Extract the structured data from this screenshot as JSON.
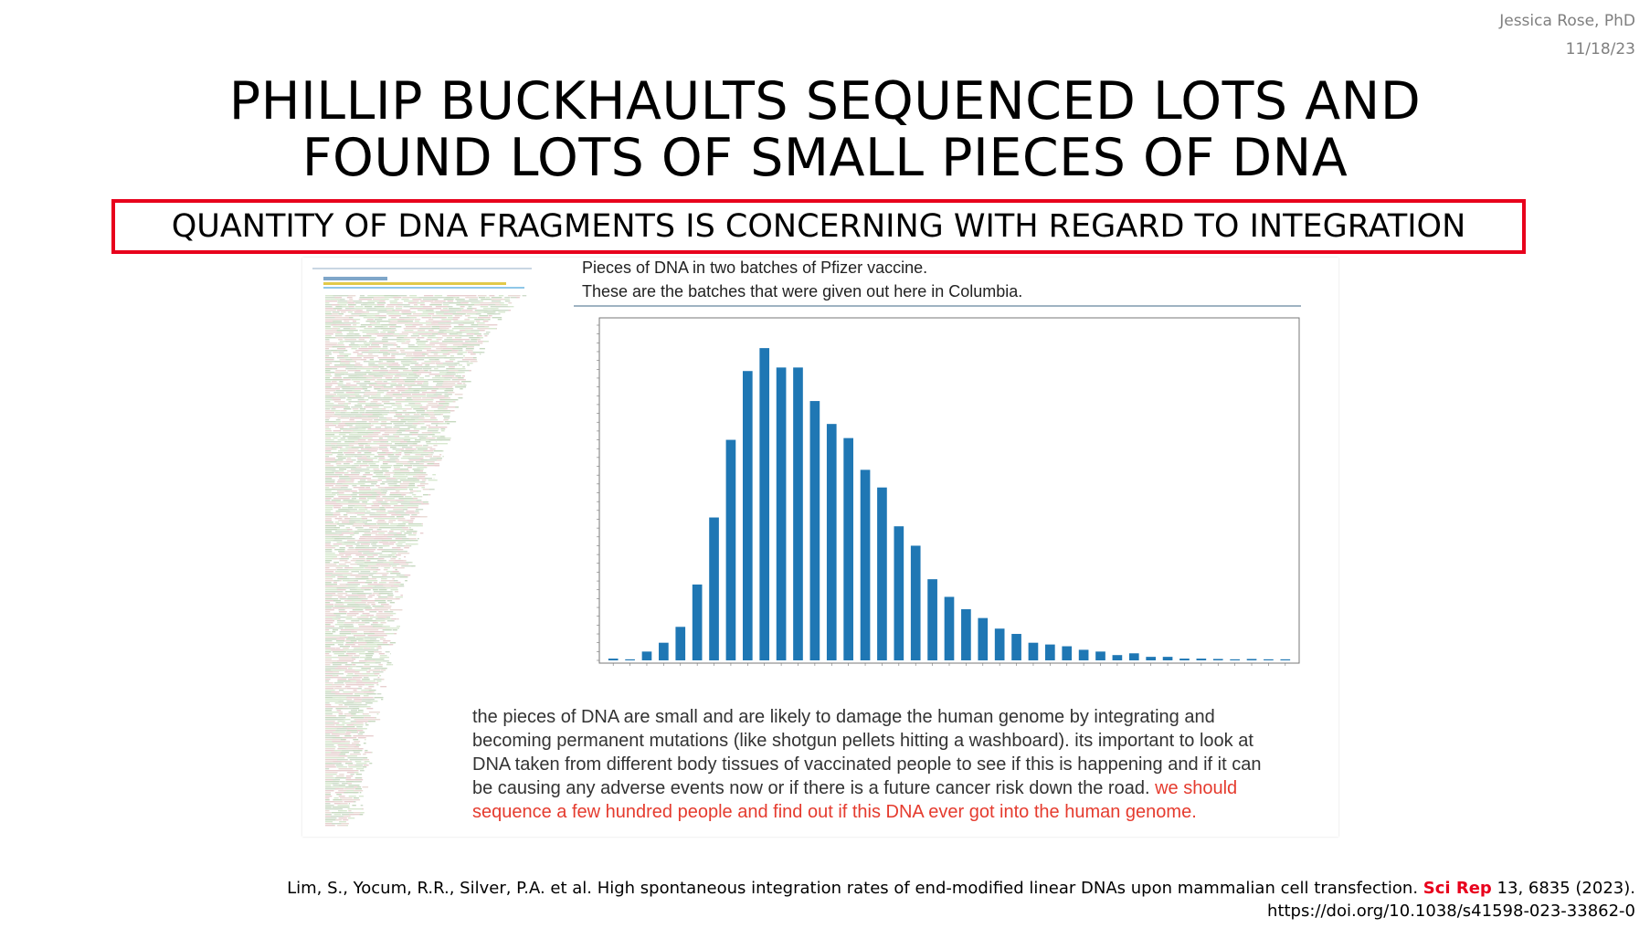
{
  "author": {
    "name": "Jessica Rose, PhD",
    "date": "11/18/23"
  },
  "title": {
    "line1": "PHILLIP BUCKHAULTS SEQUENCED LOTS AND",
    "line2": "FOUND LOTS OF SMALL PIECES OF DNA"
  },
  "banner": "QUANTITY OF DNA FRAGMENTS IS CONCERNING WITH REGARD TO INTEGRATION",
  "caption": {
    "line1": "Pieces of DNA in two batches of Pfizer vaccine.",
    "line2": "These are the batches that were given out here in Columbia."
  },
  "body": {
    "line1": "the pieces of DNA are small and are likely to damage the human genome by integrating and",
    "line2": "becoming permanent mutations (like shotgun pellets hitting a washboard).  its important to look at",
    "line3": "DNA taken from different body tissues of vaccinated people to see if this is happening and if it can",
    "line4_plain": "be causing any adverse events now or if there is a future cancer risk down the road. ",
    "line4_red": "we should",
    "line5_red": "sequence a few hundred people and find out if this DNA ever got into the human genome."
  },
  "reference": {
    "line1_pre": "Lim, S., Yocum, R.R., Silver, P.A. et al. High spontaneous integration rates of end-modified linear DNAs upon mammalian cell transfection. ",
    "line1_journal": "Sci Rep",
    "line1_post": " 13, 6835 (2023).",
    "line2": "https://doi.org/10.1038/s41598-023-33862-0"
  },
  "chart_data": {
    "type": "bar",
    "color": "#1f77b4",
    "ylim": [
      0,
      9.5
    ],
    "values": [
      0.05,
      0.03,
      0.25,
      0.5,
      0.95,
      2.15,
      4.05,
      6.25,
      8.2,
      8.85,
      8.3,
      8.3,
      7.35,
      6.7,
      6.3,
      5.4,
      4.9,
      3.8,
      3.25,
      2.3,
      1.8,
      1.45,
      1.2,
      0.9,
      0.75,
      0.5,
      0.45,
      0.4,
      0.3,
      0.25,
      0.15,
      0.2,
      0.1,
      0.1,
      0.05,
      0.05,
      0.04,
      0.03,
      0.04,
      0.03,
      0.03
    ]
  }
}
